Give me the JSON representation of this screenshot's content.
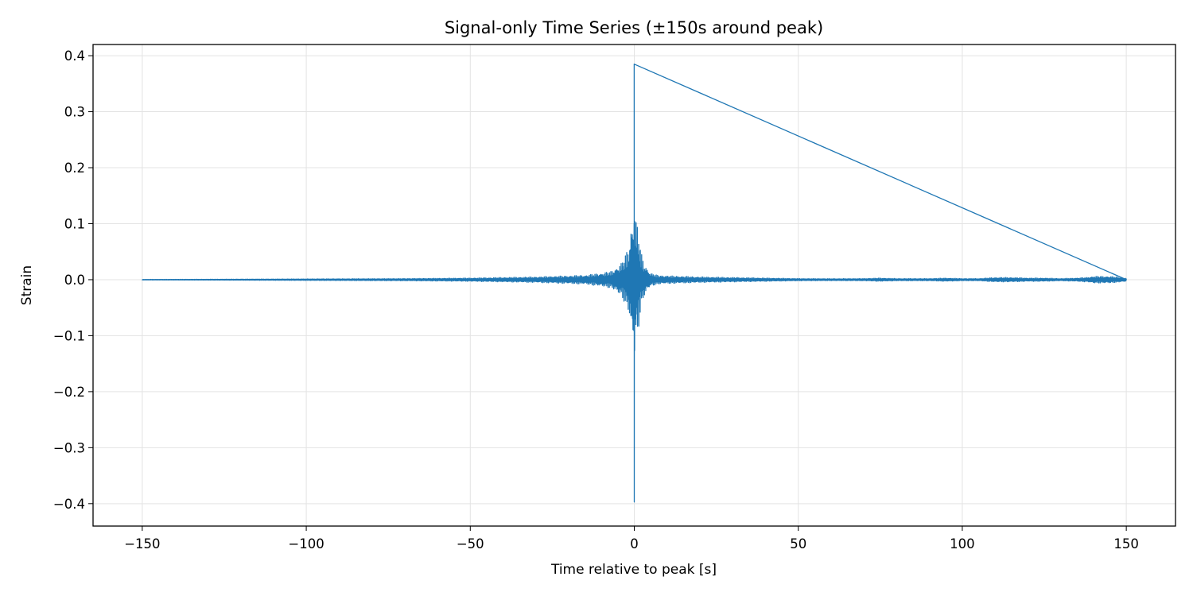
{
  "chart_data": {
    "type": "line",
    "title": "Signal-only Time Series (±150s around peak)",
    "xlabel": "Time relative to peak [s]",
    "ylabel": "Strain",
    "xlim": [
      -165,
      165
    ],
    "ylim": [
      -0.44,
      0.42
    ],
    "xticks": [
      -150,
      -100,
      -50,
      0,
      50,
      100,
      150
    ],
    "xtick_labels": [
      "−150",
      "−100",
      "−50",
      "0",
      "50",
      "100",
      "150"
    ],
    "yticks": [
      -0.4,
      -0.3,
      -0.2,
      -0.1,
      0.0,
      0.1,
      0.2,
      0.3,
      0.4
    ],
    "ytick_labels": [
      "−0.4",
      "−0.3",
      "−0.2",
      "−0.1",
      "0.0",
      "0.1",
      "0.2",
      "0.3",
      "0.4"
    ],
    "grid": true,
    "legend": "none",
    "series": [
      {
        "color": "#1f77b4",
        "envelope": {
          "t": [
            -150,
            -140,
            -130,
            -120,
            -110,
            -100,
            -90,
            -80,
            -70,
            -60,
            -50,
            -40,
            -30,
            -25,
            -20,
            -15,
            -10,
            -7,
            -5,
            -4,
            -3,
            -2,
            -1.5,
            -1,
            -0.6,
            -0.3,
            -0.1,
            0,
            0.1,
            0.3,
            0.6,
            1,
            1.5,
            2,
            3,
            4,
            5,
            7,
            10,
            15,
            20,
            30,
            40,
            50,
            60,
            70,
            75,
            80,
            90,
            95,
            100,
            105,
            110,
            115,
            120,
            125,
            130,
            135,
            138,
            140,
            145,
            150
          ],
          "amplitude": [
            0.0005,
            0.0006,
            0.0008,
            0.001,
            0.0012,
            0.0014,
            0.0016,
            0.0018,
            0.002,
            0.0025,
            0.003,
            0.004,
            0.005,
            0.006,
            0.007,
            0.008,
            0.012,
            0.015,
            0.025,
            0.03,
            0.04,
            0.055,
            0.065,
            0.1,
            0.11,
            0.115,
            0.14,
            0.39,
            0.15,
            0.12,
            0.11,
            0.1,
            0.08,
            0.05,
            0.03,
            0.02,
            0.012,
            0.008,
            0.007,
            0.006,
            0.005,
            0.004,
            0.003,
            0.002,
            0.0018,
            0.002,
            0.003,
            0.002,
            0.002,
            0.003,
            0.002,
            0.002,
            0.004,
            0.004,
            0.003,
            0.003,
            0.002,
            0.003,
            0.004,
            0.006,
            0.006,
            0.003
          ]
        },
        "peak": {
          "t": 0,
          "max": 0.385,
          "min": -0.397
        }
      }
    ]
  }
}
